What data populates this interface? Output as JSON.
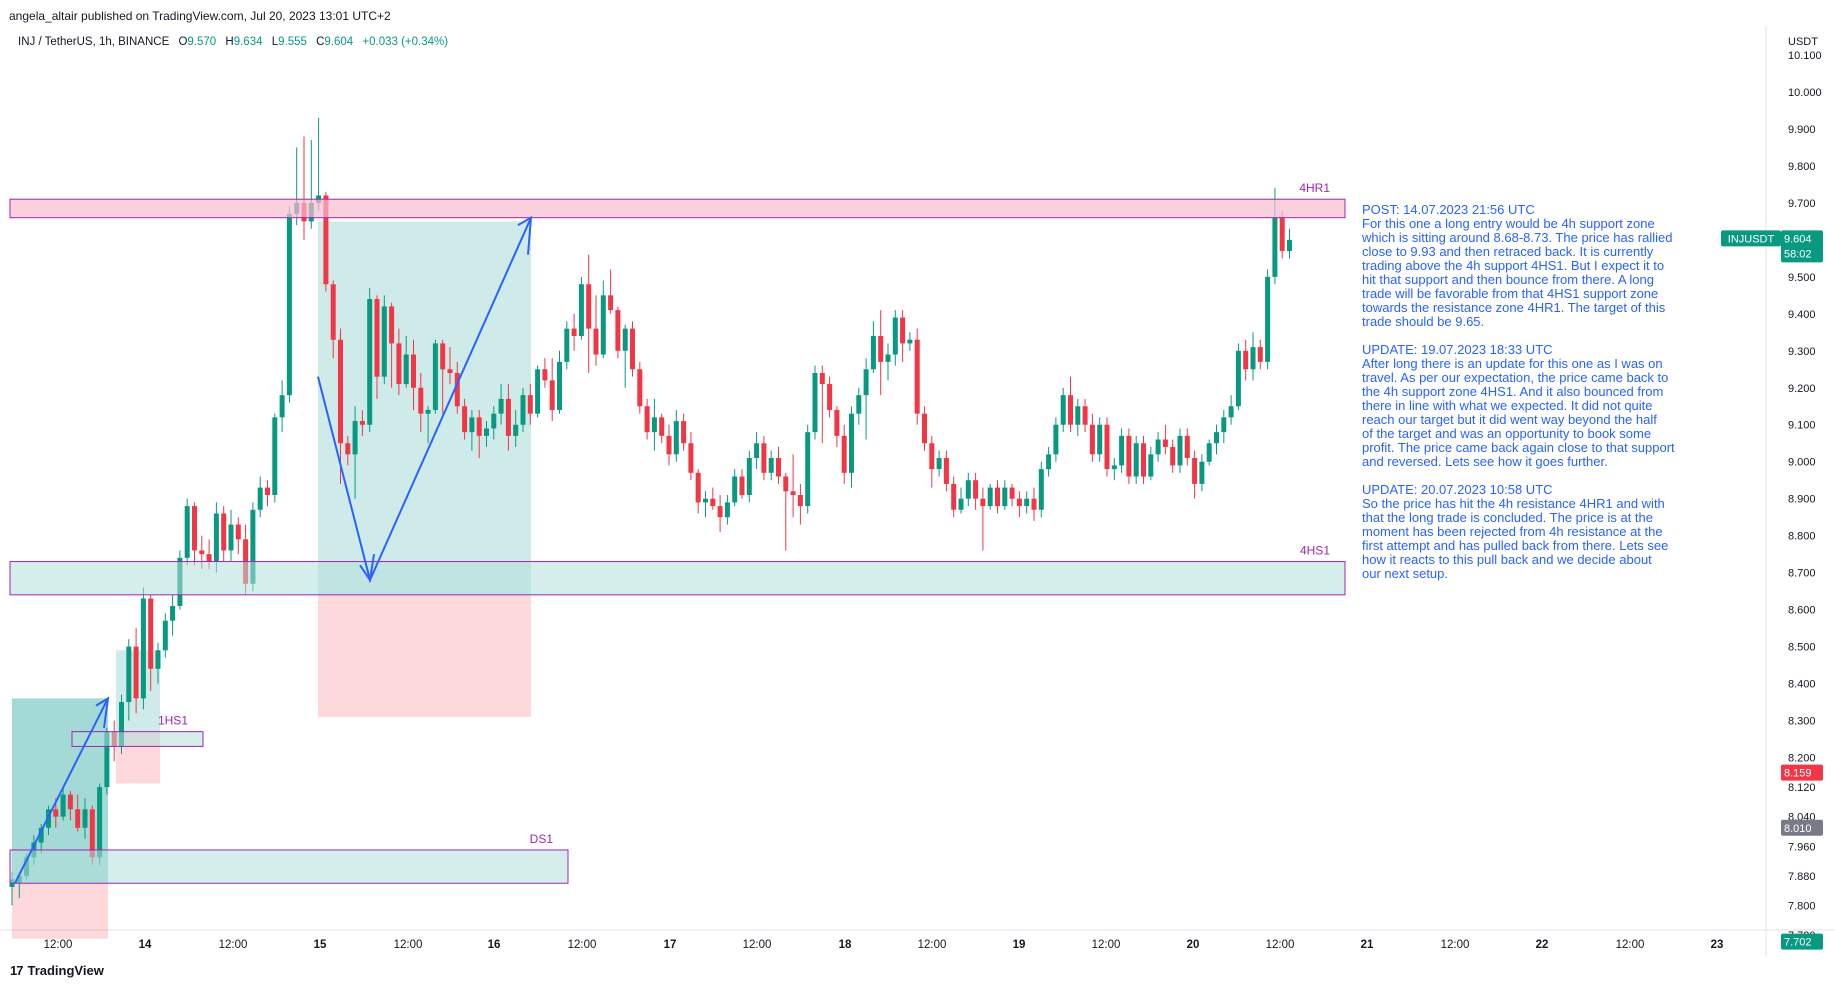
{
  "header": {
    "published": "angela_altair published on TradingView.com, Jul 20, 2023 13:01 UTC+2"
  },
  "legend": {
    "symbol": "INJ / TetherUS, 1h, BINANCE",
    "o_label": "O",
    "o": "9.570",
    "h_label": "H",
    "h": "9.634",
    "l_label": "L",
    "l": "9.555",
    "c_label": "C",
    "c": "9.604",
    "change": "+0.033 (+0.34%)"
  },
  "colors": {
    "up": "#089981",
    "down": "#f23645",
    "annot": "#2962ff",
    "zone_border": "#9c27b0",
    "zone_green": "#b2dfdb",
    "zone_red": "#f8bbd0"
  },
  "chart_data": {
    "type": "candlestick",
    "currency": "USDT",
    "ylim": [
      7.7,
      10.12
    ],
    "price_ticks": [
      "10.100",
      "10.000",
      "9.900",
      "9.800",
      "9.700",
      "9.600",
      "9.500",
      "9.400",
      "9.300",
      "9.200",
      "9.100",
      "9.000",
      "8.900",
      "8.800",
      "8.700",
      "8.600",
      "8.500",
      "8.400",
      "8.300",
      "8.200",
      "8.120",
      "8.040",
      "7.960",
      "7.880",
      "7.800",
      "7.720"
    ],
    "time_ticks": [
      "12:00",
      "14",
      "12:00",
      "15",
      "12:00",
      "16",
      "12:00",
      "17",
      "12:00",
      "18",
      "12:00",
      "19",
      "12:00",
      "20",
      "12:00",
      "21",
      "12:00",
      "22",
      "12:00",
      "23"
    ],
    "price_badges": [
      {
        "label": "INJUSDT",
        "value": "9.604",
        "countdown": "58:02",
        "color": "#089981"
      },
      {
        "value": "8.159",
        "color": "#f23645"
      },
      {
        "value": "8.010",
        "color": "#787b86"
      },
      {
        "value": "7.702",
        "color": "#089981"
      }
    ],
    "zones": [
      {
        "name": "4HR1",
        "low": 9.66,
        "high": 9.71,
        "type": "resistance"
      },
      {
        "name": "4HS1",
        "low": 8.64,
        "high": 8.73,
        "type": "support"
      },
      {
        "name": "1HS1",
        "low": 8.23,
        "high": 8.27,
        "type": "support"
      },
      {
        "name": "DS1",
        "low": 7.86,
        "high": 7.95,
        "type": "support"
      }
    ],
    "trade_setups": [
      {
        "entry": 8.64,
        "target": 9.65,
        "stop": 8.31
      },
      {
        "entry": 7.86,
        "target": 8.36,
        "stop": 7.71
      },
      {
        "entry": 8.27,
        "target": 8.49,
        "stop": 8.13
      }
    ],
    "ohlc": [
      [
        7.85,
        7.89,
        7.8,
        7.87
      ],
      [
        7.86,
        7.89,
        7.82,
        7.88
      ],
      [
        7.88,
        7.94,
        7.87,
        7.93
      ],
      [
        7.93,
        7.99,
        7.91,
        7.97
      ],
      [
        7.97,
        8.02,
        7.94,
        8.01
      ],
      [
        8.01,
        8.07,
        7.99,
        8.06
      ],
      [
        8.06,
        8.09,
        8.01,
        8.04
      ],
      [
        8.04,
        8.12,
        8.03,
        8.1
      ],
      [
        8.1,
        8.11,
        8.03,
        8.06
      ],
      [
        8.06,
        8.1,
        8.0,
        8.01
      ],
      [
        8.01,
        8.09,
        7.98,
        8.06
      ],
      [
        8.06,
        8.07,
        7.91,
        7.93
      ],
      [
        7.93,
        8.13,
        7.91,
        8.12
      ],
      [
        8.12,
        8.28,
        8.1,
        8.27
      ],
      [
        8.27,
        8.3,
        8.19,
        8.23
      ],
      [
        8.23,
        8.37,
        8.21,
        8.35
      ],
      [
        8.35,
        8.52,
        8.3,
        8.5
      ],
      [
        8.5,
        8.55,
        8.32,
        8.36
      ],
      [
        8.36,
        8.66,
        8.33,
        8.63
      ],
      [
        8.63,
        8.64,
        8.38,
        8.44
      ],
      [
        8.44,
        8.51,
        8.4,
        8.49
      ],
      [
        8.49,
        8.59,
        8.47,
        8.57
      ],
      [
        8.57,
        8.64,
        8.53,
        8.61
      ],
      [
        8.61,
        8.76,
        8.6,
        8.74
      ],
      [
        8.74,
        8.9,
        8.72,
        8.88
      ],
      [
        8.88,
        8.89,
        8.72,
        8.76
      ],
      [
        8.76,
        8.8,
        8.71,
        8.75
      ],
      [
        8.75,
        8.79,
        8.71,
        8.73
      ],
      [
        8.73,
        8.89,
        8.7,
        8.86
      ],
      [
        8.86,
        8.88,
        8.73,
        8.76
      ],
      [
        8.76,
        8.87,
        8.73,
        8.83
      ],
      [
        8.83,
        8.85,
        8.75,
        8.79
      ],
      [
        8.79,
        8.83,
        8.64,
        8.67
      ],
      [
        8.67,
        8.89,
        8.65,
        8.87
      ],
      [
        8.87,
        8.96,
        8.85,
        8.93
      ],
      [
        8.93,
        8.95,
        8.88,
        8.91
      ],
      [
        8.91,
        9.13,
        8.89,
        9.12
      ],
      [
        9.12,
        9.22,
        9.08,
        9.18
      ],
      [
        9.18,
        9.69,
        9.16,
        9.67
      ],
      [
        9.67,
        9.85,
        9.64,
        9.7
      ],
      [
        9.7,
        9.88,
        9.6,
        9.65
      ],
      [
        9.65,
        9.87,
        9.63,
        9.7
      ],
      [
        9.7,
        9.93,
        9.68,
        9.72
      ],
      [
        9.72,
        9.73,
        9.46,
        9.48
      ],
      [
        9.48,
        9.49,
        9.28,
        9.33
      ],
      [
        9.33,
        9.36,
        8.94,
        9.05
      ],
      [
        9.05,
        9.07,
        8.99,
        9.02
      ],
      [
        9.02,
        9.15,
        8.9,
        9.11
      ],
      [
        9.11,
        9.14,
        9.07,
        9.1
      ],
      [
        9.1,
        9.47,
        9.08,
        9.44
      ],
      [
        9.44,
        9.45,
        9.17,
        9.23
      ],
      [
        9.23,
        9.45,
        9.21,
        9.42
      ],
      [
        9.42,
        9.43,
        9.2,
        9.32
      ],
      [
        9.32,
        9.36,
        9.18,
        9.21
      ],
      [
        9.21,
        9.34,
        9.2,
        9.29
      ],
      [
        9.29,
        9.33,
        9.14,
        9.2
      ],
      [
        9.2,
        9.24,
        9.08,
        9.13
      ],
      [
        9.13,
        9.15,
        9.05,
        9.14
      ],
      [
        9.14,
        9.33,
        9.13,
        9.32
      ],
      [
        9.32,
        9.33,
        9.13,
        9.25
      ],
      [
        9.25,
        9.31,
        9.21,
        9.24
      ],
      [
        9.24,
        9.27,
        9.13,
        9.15
      ],
      [
        9.15,
        9.17,
        9.06,
        9.08
      ],
      [
        9.08,
        9.14,
        9.03,
        9.12
      ],
      [
        9.12,
        9.14,
        9.01,
        9.07
      ],
      [
        9.07,
        9.11,
        9.04,
        9.09
      ],
      [
        9.09,
        9.15,
        9.06,
        9.13
      ],
      [
        9.13,
        9.21,
        9.1,
        9.17
      ],
      [
        9.17,
        9.21,
        9.03,
        9.07
      ],
      [
        9.07,
        9.14,
        9.04,
        9.1
      ],
      [
        9.1,
        9.2,
        9.08,
        9.18
      ],
      [
        9.18,
        9.21,
        9.1,
        9.13
      ],
      [
        9.13,
        9.26,
        9.12,
        9.25
      ],
      [
        9.25,
        9.28,
        9.2,
        9.22
      ],
      [
        9.22,
        9.28,
        9.11,
        9.14
      ],
      [
        9.14,
        9.3,
        9.13,
        9.27
      ],
      [
        9.27,
        9.38,
        9.25,
        9.36
      ],
      [
        9.36,
        9.4,
        9.3,
        9.34
      ],
      [
        9.34,
        9.5,
        9.33,
        9.48
      ],
      [
        9.48,
        9.56,
        9.24,
        9.36
      ],
      [
        9.36,
        9.45,
        9.26,
        9.29
      ],
      [
        9.29,
        9.49,
        9.28,
        9.45
      ],
      [
        9.45,
        9.52,
        9.4,
        9.41
      ],
      [
        9.41,
        9.42,
        9.28,
        9.3
      ],
      [
        9.3,
        9.37,
        9.2,
        9.36
      ],
      [
        9.36,
        9.38,
        9.23,
        9.25
      ],
      [
        9.25,
        9.27,
        9.13,
        9.15
      ],
      [
        9.15,
        9.17,
        9.06,
        9.08
      ],
      [
        9.08,
        9.17,
        9.03,
        9.12
      ],
      [
        9.12,
        9.13,
        9.05,
        9.07
      ],
      [
        9.07,
        9.1,
        8.99,
        9.02
      ],
      [
        9.02,
        9.14,
        9.0,
        9.11
      ],
      [
        9.11,
        9.13,
        9.03,
        9.05
      ],
      [
        9.05,
        9.08,
        8.95,
        8.97
      ],
      [
        8.97,
        8.98,
        8.86,
        8.89
      ],
      [
        8.89,
        8.92,
        8.85,
        8.9
      ],
      [
        8.9,
        8.93,
        8.87,
        8.88
      ],
      [
        8.88,
        8.91,
        8.81,
        8.85
      ],
      [
        8.85,
        8.91,
        8.83,
        8.89
      ],
      [
        8.89,
        8.98,
        8.88,
        8.96
      ],
      [
        8.96,
        8.98,
        8.9,
        8.91
      ],
      [
        8.91,
        9.03,
        8.89,
        9.01
      ],
      [
        9.01,
        9.08,
        8.98,
        9.05
      ],
      [
        9.05,
        9.07,
        8.95,
        8.97
      ],
      [
        8.97,
        9.03,
        8.95,
        9.01
      ],
      [
        9.01,
        9.04,
        8.94,
        8.96
      ],
      [
        8.96,
        8.97,
        8.76,
        8.92
      ],
      [
        8.92,
        9.02,
        8.85,
        8.91
      ],
      [
        8.91,
        8.94,
        8.83,
        8.88
      ],
      [
        8.88,
        9.1,
        8.86,
        9.08
      ],
      [
        9.08,
        9.26,
        9.06,
        9.24
      ],
      [
        9.24,
        9.26,
        9.05,
        9.21
      ],
      [
        9.21,
        9.23,
        9.12,
        9.14
      ],
      [
        9.14,
        9.15,
        9.04,
        9.07
      ],
      [
        9.07,
        9.1,
        8.94,
        8.97
      ],
      [
        8.97,
        9.15,
        8.93,
        9.13
      ],
      [
        9.13,
        9.2,
        9.1,
        9.18
      ],
      [
        9.18,
        9.28,
        9.06,
        9.25
      ],
      [
        9.25,
        9.38,
        9.24,
        9.34
      ],
      [
        9.34,
        9.41,
        9.18,
        9.27
      ],
      [
        9.27,
        9.32,
        9.22,
        9.29
      ],
      [
        9.29,
        9.41,
        9.26,
        9.39
      ],
      [
        9.39,
        9.41,
        9.27,
        9.32
      ],
      [
        9.32,
        9.35,
        9.3,
        9.33
      ],
      [
        9.33,
        9.36,
        9.1,
        9.13
      ],
      [
        9.13,
        9.15,
        9.03,
        9.05
      ],
      [
        9.05,
        9.07,
        8.93,
        8.98
      ],
      [
        8.98,
        9.03,
        8.96,
        9.01
      ],
      [
        9.01,
        9.03,
        8.92,
        8.94
      ],
      [
        8.94,
        8.96,
        8.85,
        8.87
      ],
      [
        8.87,
        8.93,
        8.86,
        8.9
      ],
      [
        8.9,
        8.97,
        8.88,
        8.95
      ],
      [
        8.95,
        8.97,
        8.87,
        8.9
      ],
      [
        8.9,
        8.93,
        8.76,
        8.88
      ],
      [
        8.88,
        8.94,
        8.87,
        8.93
      ],
      [
        8.93,
        8.95,
        8.86,
        8.88
      ],
      [
        8.88,
        8.95,
        8.87,
        8.93
      ],
      [
        8.93,
        8.94,
        8.88,
        8.9
      ],
      [
        8.9,
        8.92,
        8.85,
        8.88
      ],
      [
        8.88,
        8.92,
        8.86,
        8.9
      ],
      [
        8.9,
        8.93,
        8.84,
        8.87
      ],
      [
        8.87,
        9.0,
        8.85,
        8.98
      ],
      [
        8.98,
        9.04,
        8.96,
        9.02
      ],
      [
        9.02,
        9.12,
        9.0,
        9.1
      ],
      [
        9.1,
        9.2,
        9.08,
        9.18
      ],
      [
        9.18,
        9.23,
        9.08,
        9.1
      ],
      [
        9.1,
        9.17,
        9.07,
        9.15
      ],
      [
        9.15,
        9.17,
        9.08,
        9.1
      ],
      [
        9.1,
        9.13,
        9.0,
        9.02
      ],
      [
        9.02,
        9.12,
        9.0,
        9.1
      ],
      [
        9.1,
        9.12,
        8.96,
        8.98
      ],
      [
        8.98,
        9.01,
        8.95,
        8.99
      ],
      [
        8.99,
        9.09,
        8.97,
        9.07
      ],
      [
        9.07,
        9.09,
        8.94,
        8.96
      ],
      [
        8.96,
        9.07,
        8.94,
        9.05
      ],
      [
        9.05,
        9.07,
        8.94,
        8.96
      ],
      [
        8.96,
        9.04,
        8.95,
        9.02
      ],
      [
        9.02,
        9.08,
        9.0,
        9.06
      ],
      [
        9.06,
        9.1,
        9.02,
        9.04
      ],
      [
        9.04,
        9.06,
        8.97,
        8.99
      ],
      [
        8.99,
        9.09,
        8.97,
        9.07
      ],
      [
        9.07,
        9.09,
        8.99,
        9.01
      ],
      [
        9.01,
        9.03,
        8.9,
        8.94
      ],
      [
        8.94,
        9.02,
        8.92,
        9.0
      ],
      [
        9.0,
        9.06,
        8.99,
        9.05
      ],
      [
        9.05,
        9.1,
        9.02,
        9.08
      ],
      [
        9.08,
        9.14,
        9.05,
        9.12
      ],
      [
        9.12,
        9.18,
        9.1,
        9.15
      ],
      [
        9.15,
        9.32,
        9.14,
        9.3
      ],
      [
        9.3,
        9.33,
        9.22,
        9.25
      ],
      [
        9.25,
        9.35,
        9.22,
        9.31
      ],
      [
        9.31,
        9.33,
        9.25,
        9.27
      ],
      [
        9.27,
        9.52,
        9.25,
        9.5
      ],
      [
        9.5,
        9.74,
        9.48,
        9.66
      ],
      [
        9.66,
        9.68,
        9.55,
        9.57
      ],
      [
        9.57,
        9.63,
        9.55,
        9.6
      ]
    ],
    "annotation_text": [
      "POST: 14.07.2023 21:56 UTC",
      "For this one a long entry would be 4h support zone",
      "which is sitting around 8.68-8.73. The price has rallied",
      "close to 9.93 and then retraced back. It is currently",
      "trading above the 4h support 4HS1. But I expect it to",
      "hit that support and then bounce from there. A long",
      "trade will be favorable from that 4HS1 support zone",
      "towards the resistance zone 4HR1. The target of this",
      "trade should be 9.65.",
      "",
      "UPDATE: 19.07.2023 18:33 UTC",
      "After long there is an update for this one as I was on",
      "travel. As per our expectation, the price came back to",
      "the 4h support zone 4HS1. And it also bounced from",
      "there in line with what we expected. It did not quite",
      "reach our target but it did went way beyond the half",
      "of the target and was an opportunity to book some",
      "profit. The price came back again close to that support",
      "and reversed. Lets see how it goes further.",
      "",
      "UPDATE: 20.07.2023 10:58 UTC",
      "So the price has hit the 4h resistance 4HR1 and with",
      "that the long trade is concluded. The price is at the",
      "moment has been rejected from 4h resistance at the",
      "first attempt and has pulled back from there. Lets see",
      "how it reacts to this pull back and we decide about",
      "our next setup."
    ]
  },
  "footer": {
    "brand": "TradingView",
    "logo": "17"
  }
}
